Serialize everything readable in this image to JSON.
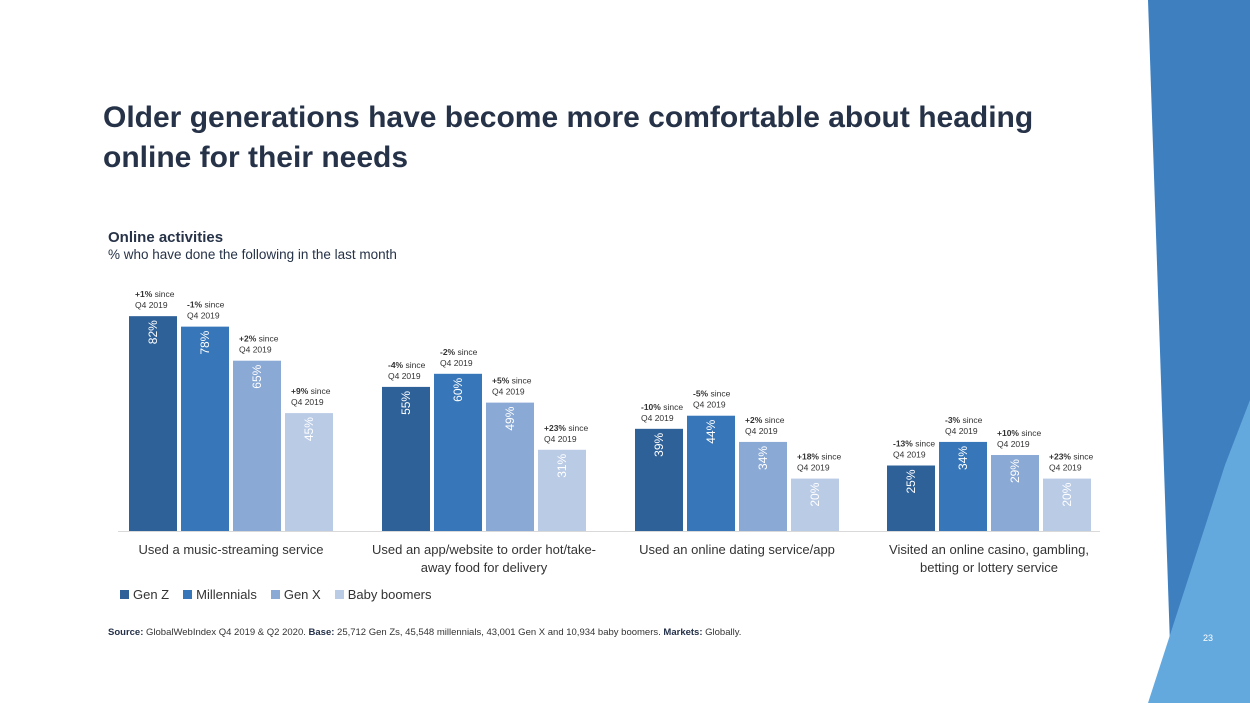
{
  "slide": {
    "title": "Older generations have become more comfortable about heading online for their needs",
    "chart_title": "Online activities",
    "chart_subtitle": "% who have done the following in the last month",
    "source_label": "Source:",
    "source_text": "GlobalWebIndex Q4 2019 & Q2 2020.",
    "base_label": "Base:",
    "base_text": "25,712 Gen Zs, 45,548 millennials, 43,001 Gen X and 10,934 baby boomers.",
    "markets_label": "Markets:",
    "markets_text": "Globally.",
    "page_number": "23",
    "colors": {
      "band_dark": "#3e7fc0",
      "band_light": "#64a9de"
    }
  },
  "chart_data": {
    "type": "bar",
    "categories": [
      "Used a music-streaming service",
      "Used an app/website to order hot/take-away food for delivery",
      "Used an online dating service/app",
      "Visited an online casino, gambling, betting or lottery service"
    ],
    "category_lines": [
      [
        "Used a music-streaming service"
      ],
      [
        "Used an app/website to order hot/take-",
        "away food for delivery"
      ],
      [
        "Used an online dating service/app"
      ],
      [
        "Visited an online casino, gambling,",
        "betting or lottery service"
      ]
    ],
    "series": [
      {
        "name": "Gen Z",
        "color": "#2f6199",
        "values": [
          82,
          55,
          39,
          25
        ],
        "change": [
          "+1%",
          "-4%",
          "-10%",
          "-13%"
        ]
      },
      {
        "name": "Millennials",
        "color": "#3776b8",
        "values": [
          78,
          60,
          44,
          34
        ],
        "change": [
          "-1%",
          "-2%",
          "-5%",
          "-3%"
        ]
      },
      {
        "name": "Gen X",
        "color": "#8aa9d5",
        "values": [
          65,
          49,
          34,
          29
        ],
        "change": [
          "+2%",
          "+5%",
          "+2%",
          "+10%"
        ]
      },
      {
        "name": "Baby boomers",
        "color": "#bacbe6",
        "values": [
          45,
          31,
          20,
          20
        ],
        "change": [
          "+9%",
          "+23%",
          "+18%",
          "+23%"
        ]
      }
    ],
    "value_suffix": "%",
    "change_suffix": "since",
    "change_period": "Q4 2019",
    "ylim": [
      0,
      100
    ],
    "grid": false,
    "legend_position": "bottom-left"
  }
}
